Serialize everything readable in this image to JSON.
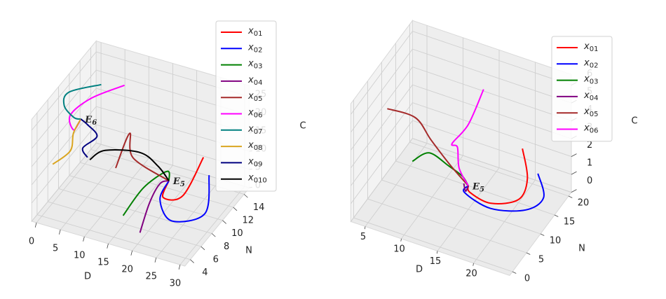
{
  "chart_data": [
    {
      "type": "line3d",
      "xlabel": "D",
      "ylabel": "N",
      "zlabel": "C",
      "xlim": [
        -1,
        31
      ],
      "ylim": [
        3,
        15
      ],
      "zlim": [
        0,
        28
      ],
      "xticks": [
        0,
        5,
        10,
        15,
        20,
        25,
        30
      ],
      "yticks": [
        4,
        6,
        8,
        10,
        12,
        14
      ],
      "zticks": [
        0,
        5,
        10,
        15,
        20,
        25
      ],
      "grid": true,
      "annotations": [
        {
          "text": "E6",
          "point": [
            3.2,
            8.4,
            20
          ]
        },
        {
          "text": "E5",
          "point": [
            18,
            11.6,
            3
          ]
        }
      ],
      "series": [
        {
          "name": "x01",
          "color": "#ff0000",
          "x": [
            24.1,
            20.9,
            17.8,
            18
          ],
          "y": [
            12.6,
            11.6,
            10.7,
            11.6
          ],
          "z": [
            10,
            0,
            0,
            3
          ]
        },
        {
          "name": "x02",
          "color": "#0000ff",
          "x": [
            25.5,
            27.1,
            22.5,
            17.6,
            18
          ],
          "y": [
            12.4,
            10.2,
            8.1,
            10.3,
            11.6
          ],
          "z": [
            6,
            0,
            0,
            0,
            3
          ]
        },
        {
          "name": "x03",
          "color": "#008000",
          "x": [
            13.6,
            15.2,
            17.4,
            18
          ],
          "y": [
            7.0,
            9.4,
            11.8,
            11.6
          ],
          "z": [
            0,
            4,
            5,
            3
          ]
        },
        {
          "name": "x04",
          "color": "#800080",
          "x": [
            18.8,
            16.3,
            16.9,
            18
          ],
          "y": [
            5.5,
            9.5,
            10.9,
            11.6
          ],
          "z": [
            0,
            0,
            3,
            3
          ]
        },
        {
          "name": "x05",
          "color": "#a52a2a",
          "x": [
            9.8,
            12.4,
            12.3,
            18
          ],
          "y": [
            9.0,
            9.3,
            10,
            11.6
          ],
          "z": [
            8,
            18,
            10,
            3
          ]
        },
        {
          "name": "x06",
          "color": "#ff00ff",
          "x": [
            9.4,
            4.6,
            1.9,
            2.5,
            3.2
          ],
          "y": [
            11,
            9.1,
            7.6,
            7.7,
            8.4
          ],
          "z": [
            27,
            25,
            22,
            18,
            20
          ]
        },
        {
          "name": "x07",
          "color": "#008080",
          "x": [
            5.9,
            0.5,
            0.5,
            2.3,
            3.2
          ],
          "y": [
            9.8,
            8.6,
            7.7,
            7.9,
            8.4
          ],
          "z": [
            28,
            26,
            24,
            21,
            20
          ]
        },
        {
          "name": "x08",
          "color": "#daa520",
          "x": [
            0.7,
            2.8,
            2.9,
            3.2
          ],
          "y": [
            5.4,
            6.8,
            7.3,
            8.4
          ],
          "z": [
            12,
            14,
            18,
            20
          ]
        },
        {
          "name": "x09",
          "color": "#000080",
          "x": [
            4.6,
            3.5,
            5.8,
            4.6,
            3.2
          ],
          "y": [
            8.4,
            8.5,
            9.1,
            8.4,
            8.4
          ],
          "z": [
            10,
            12,
            15,
            19,
            20
          ]
        },
        {
          "name": "x010",
          "color": "#000000",
          "x": [
            5.3,
            7.6,
            12.8,
            16.2,
            18
          ],
          "y": [
            8.2,
            9.0,
            10.9,
            11.2,
            11.6
          ],
          "z": [
            10,
            12,
            10,
            7,
            3
          ]
        }
      ]
    },
    {
      "type": "line3d",
      "xlabel": "D",
      "ylabel": "N",
      "zlabel": "C",
      "xlim": [
        3,
        25
      ],
      "ylim": [
        -1,
        21
      ],
      "zlim": [
        0,
        6.6
      ],
      "xticks": [
        5,
        10,
        15,
        20
      ],
      "yticks": [
        0,
        5,
        10,
        15,
        20
      ],
      "zticks": [
        0,
        1,
        2,
        3,
        4,
        5,
        6
      ],
      "grid": true,
      "annotations": [
        {
          "text": "E5",
          "point": [
            13.8,
            13.1,
            0.5
          ]
        }
      ],
      "series": [
        {
          "name": "x01",
          "color": "#ff0000",
          "x": [
            20.4,
            21.2,
            20.2,
            17.0,
            13.8,
            13.8
          ],
          "y": [
            15.4,
            15.1,
            14.6,
            12.9,
            13.7,
            13.1
          ],
          "z": [
            3,
            1.5,
            0.3,
            0,
            0,
            0.5
          ]
        },
        {
          "name": "x02",
          "color": "#0000ff",
          "x": [
            22.7,
            23.1,
            21.4,
            17.4,
            13.2,
            13.8
          ],
          "y": [
            15.0,
            16.0,
            14.0,
            11.8,
            13.3,
            13.1
          ],
          "z": [
            2,
            0.5,
            0,
            0,
            0,
            0.5
          ]
        },
        {
          "name": "x03",
          "color": "#008000",
          "x": [
            7.8,
            9.7,
            11.5,
            13.1,
            13.8
          ],
          "y": [
            8.6,
            9.7,
            12.1,
            12.8,
            13.1
          ],
          "z": [
            2,
            2.5,
            1.5,
            1,
            0.5
          ]
        },
        {
          "name": "x04",
          "color": "#800080",
          "x": [
            13.4,
            13.5,
            13.8
          ],
          "y": [
            12.5,
            12.9,
            13.1
          ],
          "z": [
            0.7,
            0.2,
            0.5
          ]
        },
        {
          "name": "x05",
          "color": "#a52a2a",
          "x": [
            5.1,
            8.2,
            10.3,
            12.2,
            13.8
          ],
          "y": [
            6.6,
            8.6,
            8.8,
            10.6,
            13.1
          ],
          "z": [
            5,
            4.5,
            3.5,
            2,
            0.5
          ]
        },
        {
          "name": "x06",
          "color": "#ff00ff",
          "x": [
            14.9,
            13.9,
            12.2,
            12.8,
            12.8,
            13.8
          ],
          "y": [
            15.7,
            12.8,
            11.4,
            11.8,
            12.4,
            13.1
          ],
          "z": [
            5.5,
            4,
            3,
            2.8,
            1.5,
            0.5
          ]
        }
      ]
    }
  ]
}
